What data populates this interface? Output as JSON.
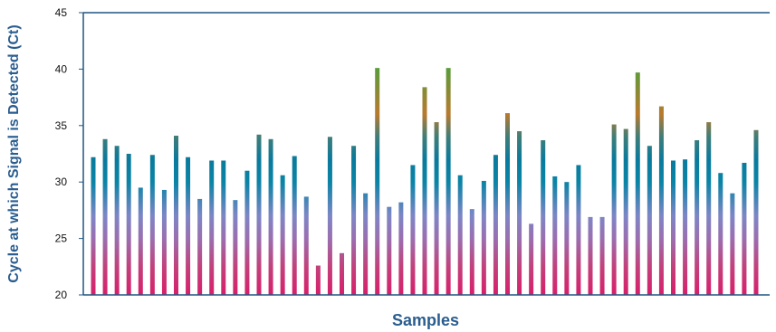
{
  "chart_data": {
    "type": "bar",
    "ylabel": "Cycle at which Signal is Detected (Ct)",
    "xlabel": "Samples",
    "ylim": [
      20,
      45
    ],
    "yticks": [
      20,
      25,
      30,
      35,
      40,
      45
    ],
    "grid": false,
    "values": [
      32.2,
      33.8,
      33.2,
      32.5,
      29.5,
      32.4,
      29.3,
      34.1,
      32.2,
      28.5,
      31.9,
      31.9,
      28.4,
      31.0,
      34.2,
      33.8,
      30.6,
      32.3,
      28.7,
      22.6,
      34.0,
      23.7,
      33.2,
      29.0,
      40.1,
      27.8,
      28.2,
      31.5,
      38.4,
      35.3,
      40.1,
      30.6,
      27.6,
      30.1,
      32.4,
      36.1,
      34.5,
      26.3,
      33.7,
      30.5,
      30.0,
      31.5,
      26.9,
      26.9,
      35.1,
      34.7,
      39.7,
      33.2,
      36.7,
      31.9,
      32.0,
      33.7,
      35.3,
      30.8,
      29.0,
      31.7,
      34.6
    ],
    "colors": {
      "axis": "#1f5582",
      "title": "#2a5d8f",
      "gradient_bottom": "#d81e6b",
      "gradient_mid_low": "#7d86c6",
      "gradient_mid": "#0a84a6",
      "gradient_mid_high": "#0a6d8e",
      "gradient_high": "#b87a2e",
      "gradient_top": "#5a9c3a"
    }
  }
}
